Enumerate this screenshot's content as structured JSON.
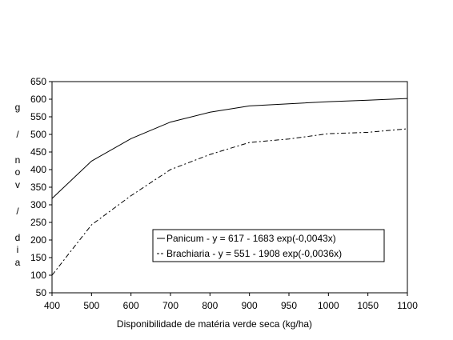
{
  "chart_data": {
    "type": "line",
    "title": "",
    "xlabel": "Disponibilidade de matéria verde seca (kg/ha)",
    "ylabel_letters": [
      "g",
      "/",
      "n",
      "o",
      "v",
      "/",
      "d",
      "i",
      "a"
    ],
    "xlim": [
      400,
      1100
    ],
    "ylim": [
      50,
      650
    ],
    "x_ticks": [
      400,
      500,
      600,
      700,
      800,
      900,
      950,
      1000,
      1050,
      1100
    ],
    "y_ticks": [
      50,
      100,
      150,
      200,
      250,
      300,
      350,
      400,
      450,
      500,
      550,
      600,
      650
    ],
    "grid": false,
    "legend_position": "lower-right",
    "series": [
      {
        "name": "Panicum - y = 617 - 1683 exp(-0,0043x)",
        "style": "solid",
        "x": [
          400,
          500,
          600,
          700,
          800,
          900,
          950,
          1000,
          1050,
          1100
        ],
        "y": [
          318,
          424,
          488,
          535,
          563,
          581,
          587,
          593,
          597,
          602
        ]
      },
      {
        "name": "Brachiaria - y = 551 - 1908 exp(-0,0036x)",
        "style": "dashed",
        "x": [
          400,
          500,
          600,
          700,
          800,
          900,
          950,
          1000,
          1050,
          1100
        ],
        "y": [
          100,
          243,
          326,
          400,
          443,
          477,
          487,
          502,
          506,
          516
        ]
      }
    ]
  }
}
